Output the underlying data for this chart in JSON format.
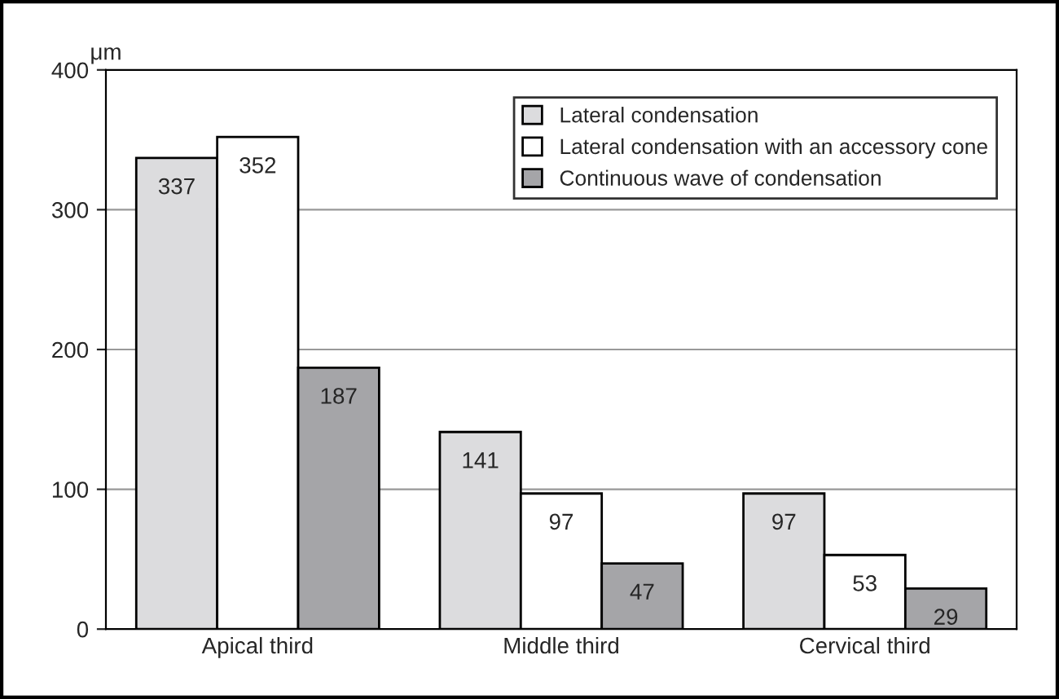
{
  "chart_data": {
    "type": "bar",
    "ylabel": "μm",
    "categories": [
      "Apical third",
      "Middle third",
      "Cervical third"
    ],
    "series": [
      {
        "name": "Lateral condensation",
        "color": "#dcdcde",
        "values": [
          337,
          141,
          97
        ]
      },
      {
        "name": "Lateral condensation with an accessory cone",
        "color": "#ffffff",
        "values": [
          352,
          97,
          53
        ]
      },
      {
        "name": "Continuous wave of condensation",
        "color": "#a5a5a8",
        "values": [
          187,
          47,
          29
        ]
      }
    ],
    "ylim": [
      0,
      400
    ],
    "yticks": [
      0,
      100,
      200,
      300,
      400
    ],
    "grid": "y",
    "legend": "top right",
    "data_labels": true
  }
}
